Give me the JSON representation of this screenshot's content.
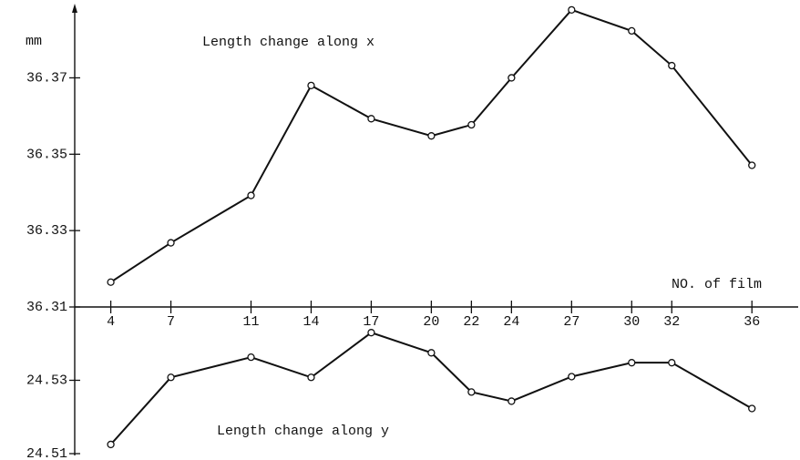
{
  "chart_data": {
    "type": "line",
    "y_label": "mm",
    "x_label": "NO. of film",
    "x": [
      4,
      7,
      11,
      14,
      17,
      20,
      22,
      24,
      27,
      30,
      32,
      36
    ],
    "xlim": [
      2.2,
      38.4
    ],
    "xticks": [
      4,
      7,
      11,
      14,
      17,
      20,
      22,
      24,
      27,
      30,
      32,
      36
    ],
    "ylim": [
      36.31,
      36.388
    ],
    "yticks": [
      36.31,
      36.33,
      36.35,
      36.37
    ],
    "y2lim": [
      24.51,
      24.55
    ],
    "y2ticks": [
      24.51,
      24.53
    ],
    "series": [
      {
        "name": "Length change along x",
        "color": "#111111",
        "values": [
          36.3165,
          36.3268,
          36.3392,
          36.368,
          36.3593,
          36.3548,
          36.3577,
          36.37,
          36.3878,
          36.3823,
          36.3732,
          36.3471
        ]
      },
      {
        "name": "Length change along y",
        "color": "#111111",
        "axis": "y2",
        "values": [
          24.5125,
          24.5308,
          24.5363,
          24.5308,
          24.543,
          24.5375,
          24.5268,
          24.5243,
          24.531,
          24.5348,
          24.5348,
          24.5223
        ]
      }
    ]
  }
}
